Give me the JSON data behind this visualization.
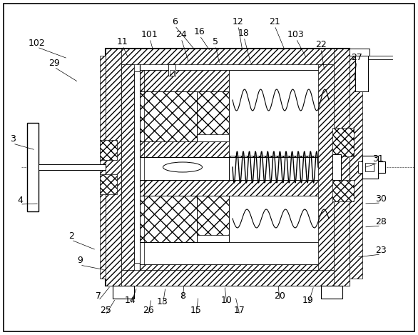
{
  "fig_width": 5.86,
  "fig_height": 4.69,
  "dpi": 100,
  "bg_color": "#ffffff",
  "lc": "#000000",
  "lc_dash": "#555555"
}
